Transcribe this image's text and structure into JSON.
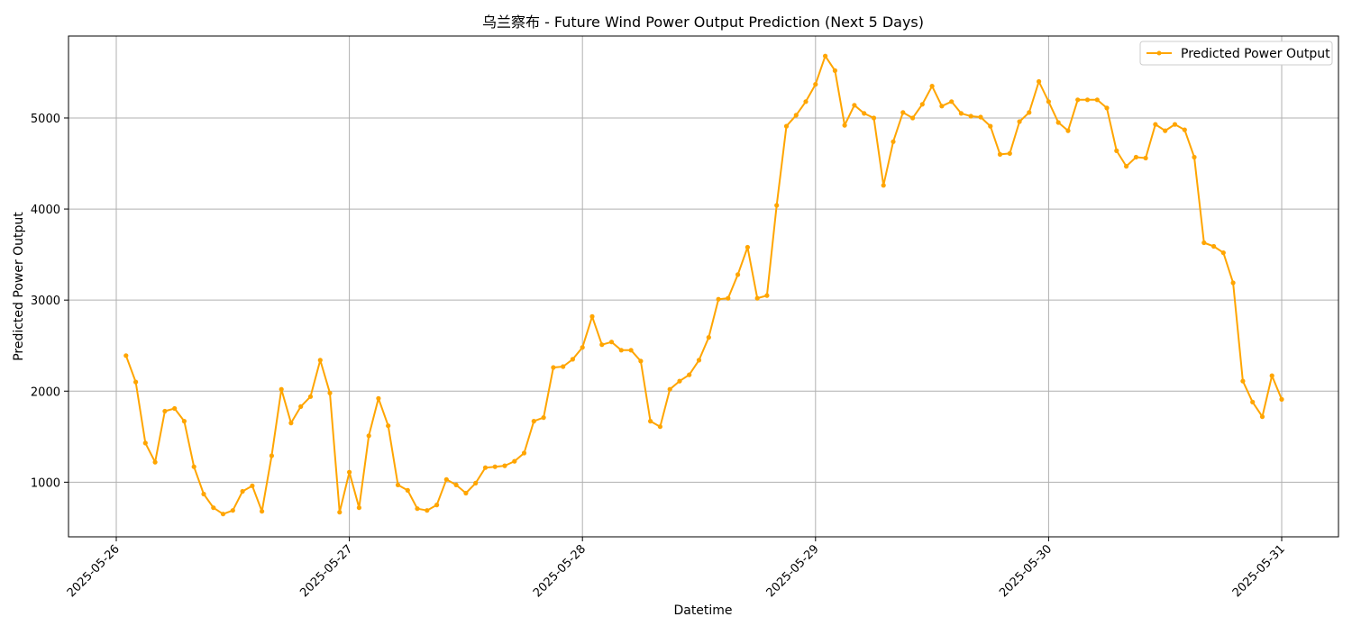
{
  "chart_data": {
    "type": "line",
    "title": "乌兰察布 - Future Wind Power Output Prediction (Next 5 Days)",
    "xlabel": "Datetime",
    "ylabel": "Predicted Power Output",
    "x_start": "2025-05-26 00:00",
    "x_end": "2025-05-31 00:00",
    "x_ticks": [
      "2025-05-26",
      "2025-05-27",
      "2025-05-28",
      "2025-05-29",
      "2025-05-30",
      "2025-05-31"
    ],
    "ylim": [
      400,
      5900
    ],
    "y_ticks": [
      1000,
      2000,
      3000,
      4000,
      5000
    ],
    "grid": true,
    "legend_position": "top-right",
    "colors": {
      "series": "#ffa500",
      "grid": "#b0b0b0"
    },
    "series": [
      {
        "name": "Predicted Power Output",
        "x": [
          "2025-05-26 01:00",
          "2025-05-26 02:00",
          "2025-05-26 03:00",
          "2025-05-26 04:00",
          "2025-05-26 05:00",
          "2025-05-26 06:00",
          "2025-05-26 07:00",
          "2025-05-26 08:00",
          "2025-05-26 09:00",
          "2025-05-26 10:00",
          "2025-05-26 11:00",
          "2025-05-26 12:00",
          "2025-05-26 13:00",
          "2025-05-26 14:00",
          "2025-05-26 15:00",
          "2025-05-26 16:00",
          "2025-05-26 17:00",
          "2025-05-26 18:00",
          "2025-05-26 19:00",
          "2025-05-26 20:00",
          "2025-05-26 21:00",
          "2025-05-26 22:00",
          "2025-05-26 23:00",
          "2025-05-27 00:00",
          "2025-05-27 01:00",
          "2025-05-27 02:00",
          "2025-05-27 03:00",
          "2025-05-27 04:00",
          "2025-05-27 05:00",
          "2025-05-27 06:00",
          "2025-05-27 07:00",
          "2025-05-27 08:00",
          "2025-05-27 09:00",
          "2025-05-27 10:00",
          "2025-05-27 11:00",
          "2025-05-27 12:00",
          "2025-05-27 13:00",
          "2025-05-27 14:00",
          "2025-05-27 15:00",
          "2025-05-27 16:00",
          "2025-05-27 17:00",
          "2025-05-27 18:00",
          "2025-05-27 19:00",
          "2025-05-27 20:00",
          "2025-05-27 21:00",
          "2025-05-27 22:00",
          "2025-05-27 23:00",
          "2025-05-28 00:00",
          "2025-05-28 01:00",
          "2025-05-28 02:00",
          "2025-05-28 03:00",
          "2025-05-28 04:00",
          "2025-05-28 05:00",
          "2025-05-28 06:00",
          "2025-05-28 07:00",
          "2025-05-28 08:00",
          "2025-05-28 09:00",
          "2025-05-28 10:00",
          "2025-05-28 11:00",
          "2025-05-28 12:00",
          "2025-05-28 13:00",
          "2025-05-28 14:00",
          "2025-05-28 15:00",
          "2025-05-28 16:00",
          "2025-05-28 17:00",
          "2025-05-28 18:00",
          "2025-05-28 19:00",
          "2025-05-28 20:00",
          "2025-05-28 21:00",
          "2025-05-28 22:00",
          "2025-05-28 23:00",
          "2025-05-29 00:00",
          "2025-05-29 01:00",
          "2025-05-29 02:00",
          "2025-05-29 03:00",
          "2025-05-29 04:00",
          "2025-05-29 05:00",
          "2025-05-29 06:00",
          "2025-05-29 07:00",
          "2025-05-29 08:00",
          "2025-05-29 09:00",
          "2025-05-29 10:00",
          "2025-05-29 11:00",
          "2025-05-29 12:00",
          "2025-05-29 13:00",
          "2025-05-29 14:00",
          "2025-05-29 15:00",
          "2025-05-29 16:00",
          "2025-05-29 17:00",
          "2025-05-29 18:00",
          "2025-05-29 19:00",
          "2025-05-29 20:00",
          "2025-05-29 21:00",
          "2025-05-29 22:00",
          "2025-05-29 23:00",
          "2025-05-30 00:00",
          "2025-05-30 01:00",
          "2025-05-30 02:00",
          "2025-05-30 03:00",
          "2025-05-30 04:00",
          "2025-05-30 05:00",
          "2025-05-30 06:00",
          "2025-05-30 07:00",
          "2025-05-30 08:00",
          "2025-05-30 09:00",
          "2025-05-30 10:00",
          "2025-05-30 11:00",
          "2025-05-30 12:00",
          "2025-05-30 13:00",
          "2025-05-30 14:00",
          "2025-05-30 15:00",
          "2025-05-30 16:00",
          "2025-05-30 17:00",
          "2025-05-30 18:00",
          "2025-05-30 19:00",
          "2025-05-30 20:00",
          "2025-05-30 21:00",
          "2025-05-30 22:00",
          "2025-05-30 23:00",
          "2025-05-31 00:00"
        ],
        "values": [
          2390,
          2100,
          1430,
          1220,
          1780,
          1810,
          1670,
          1170,
          870,
          720,
          650,
          690,
          900,
          960,
          680,
          1290,
          2020,
          1650,
          1830,
          1940,
          2340,
          1980,
          670,
          1110,
          720,
          1510,
          1920,
          1620,
          970,
          910,
          710,
          690,
          750,
          1030,
          970,
          880,
          990,
          1160,
          1170,
          1180,
          1230,
          1320,
          1670,
          1710,
          2260,
          2270,
          2350,
          2480,
          2820,
          2510,
          2540,
          2450,
          2450,
          2330,
          1670,
          1610,
          2020,
          2110,
          2180,
          2340,
          2590,
          3010,
          3020,
          3280,
          3580,
          3020,
          3050,
          4040,
          4910,
          5030,
          5180,
          5370,
          5680,
          5520,
          4920,
          5140,
          5050,
          5000,
          4260,
          4740,
          5060,
          5000,
          5150,
          5350,
          5130,
          5180,
          5050,
          5020,
          5010,
          4910,
          4600,
          4610,
          4960,
          5060,
          5400,
          5180,
          4950,
          4860,
          5200,
          5200,
          5200,
          5110,
          4640,
          4470,
          4570,
          4560,
          4930,
          4860,
          4930,
          4870,
          4570,
          3630,
          3590,
          3520,
          3190,
          2110,
          1880,
          1720,
          2170,
          1910
        ]
      }
    ]
  }
}
